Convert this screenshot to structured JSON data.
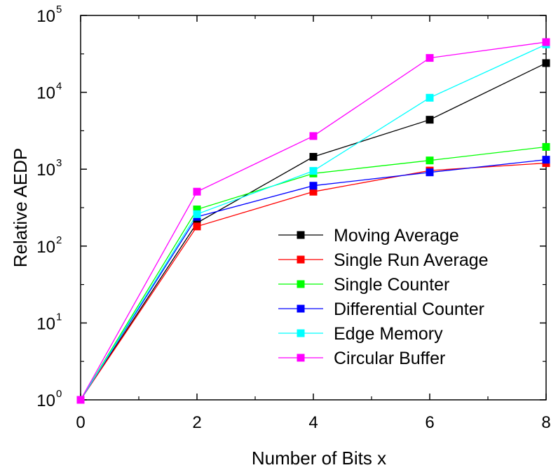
{
  "chart_data": {
    "type": "line",
    "title": "",
    "xlabel": "Number of Bits x",
    "ylabel": "Relative AEDP",
    "x": [
      0,
      2,
      4,
      6,
      8
    ],
    "xlim": [
      0,
      8
    ],
    "ylim": [
      1,
      100000
    ],
    "yscale": "log",
    "x_ticks": [
      "0",
      "2",
      "4",
      "6",
      "8"
    ],
    "y_ticks": [
      {
        "base": "10",
        "exp": "0"
      },
      {
        "base": "10",
        "exp": "1"
      },
      {
        "base": "10",
        "exp": "2"
      },
      {
        "base": "10",
        "exp": "3"
      },
      {
        "base": "10",
        "exp": "4"
      },
      {
        "base": "10",
        "exp": "5"
      }
    ],
    "grid": false,
    "legend_position": "bottom-right",
    "series": [
      {
        "name": "Moving Average",
        "color": "#000000",
        "values": [
          1,
          200,
          1450,
          4400,
          24000
        ]
      },
      {
        "name": "Single Run Average",
        "color": "#ff0000",
        "values": [
          1,
          180,
          510,
          960,
          1200
        ]
      },
      {
        "name": "Single Counter",
        "color": "#00ff00",
        "values": [
          1,
          300,
          880,
          1300,
          1950
        ]
      },
      {
        "name": "Differential Counter",
        "color": "#0000ff",
        "values": [
          1,
          240,
          610,
          910,
          1330
        ]
      },
      {
        "name": "Edge Memory",
        "color": "#00ffff",
        "values": [
          1,
          260,
          950,
          8500,
          42000
        ]
      },
      {
        "name": "Circular Buffer",
        "color": "#ff00ff",
        "values": [
          1,
          510,
          2700,
          28000,
          45000
        ]
      }
    ]
  }
}
